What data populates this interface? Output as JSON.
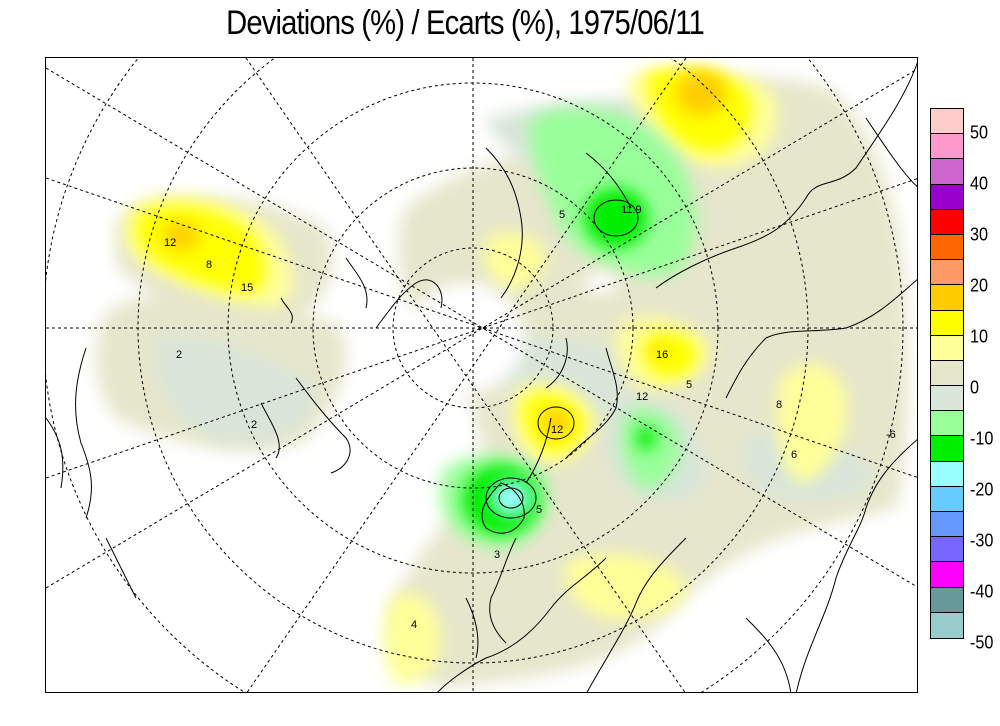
{
  "title": "Deviations (%) / Ecarts (%), 1975/06/11",
  "legend": {
    "swatches": [
      {
        "color": "#ffcccc"
      },
      {
        "color": "#ff99cc"
      },
      {
        "color": "#cc66cc"
      },
      {
        "color": "#9900cc"
      },
      {
        "color": "#ff0000"
      },
      {
        "color": "#ff6600"
      },
      {
        "color": "#ff9966"
      },
      {
        "color": "#ffcc00"
      },
      {
        "color": "#ffff00"
      },
      {
        "color": "#ffff99"
      },
      {
        "color": "#e6e6cc"
      },
      {
        "color": "#d9e6d9"
      },
      {
        "color": "#99ff99"
      },
      {
        "color": "#00ee00"
      },
      {
        "color": "#99ffff"
      },
      {
        "color": "#66ccff"
      },
      {
        "color": "#6699ff"
      },
      {
        "color": "#7766ff"
      },
      {
        "color": "#ff00ff"
      },
      {
        "color": "#669999"
      },
      {
        "color": "#99cccc"
      }
    ],
    "labels": [
      "50",
      "40",
      "30",
      "20",
      "10",
      "0",
      "-10",
      "-20",
      "-30",
      "-40",
      "-50"
    ]
  },
  "map": {
    "contour_labels": [
      "12",
      "8",
      "15",
      "2",
      "2",
      "5",
      "11.9",
      "16",
      "12",
      "5",
      "12",
      "8",
      "6",
      "-6",
      "3",
      "5",
      "4"
    ]
  }
}
